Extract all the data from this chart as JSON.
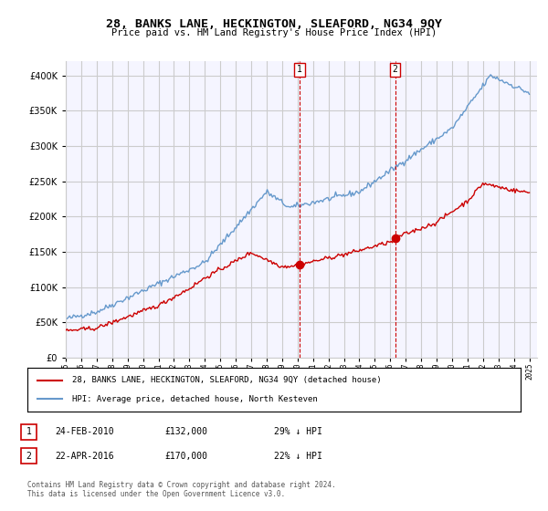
{
  "title": "28, BANKS LANE, HECKINGTON, SLEAFORD, NG34 9QY",
  "subtitle": "Price paid vs. HM Land Registry's House Price Index (HPI)",
  "red_label": "28, BANKS LANE, HECKINGTON, SLEAFORD, NG34 9QY (detached house)",
  "blue_label": "HPI: Average price, detached house, North Kesteven",
  "sale1_date": 2010.13,
  "sale1_price": 132000,
  "sale2_date": 2016.31,
  "sale2_price": 170000,
  "footer": "Contains HM Land Registry data © Crown copyright and database right 2024.\nThis data is licensed under the Open Government Licence v3.0.",
  "ylim": [
    0,
    420000
  ],
  "xlim": [
    1995,
    2025.5
  ],
  "red_color": "#cc0000",
  "blue_color": "#6699cc",
  "grid_color": "#cccccc",
  "bg_color": "#ffffff",
  "plot_bg": "#f5f5ff"
}
